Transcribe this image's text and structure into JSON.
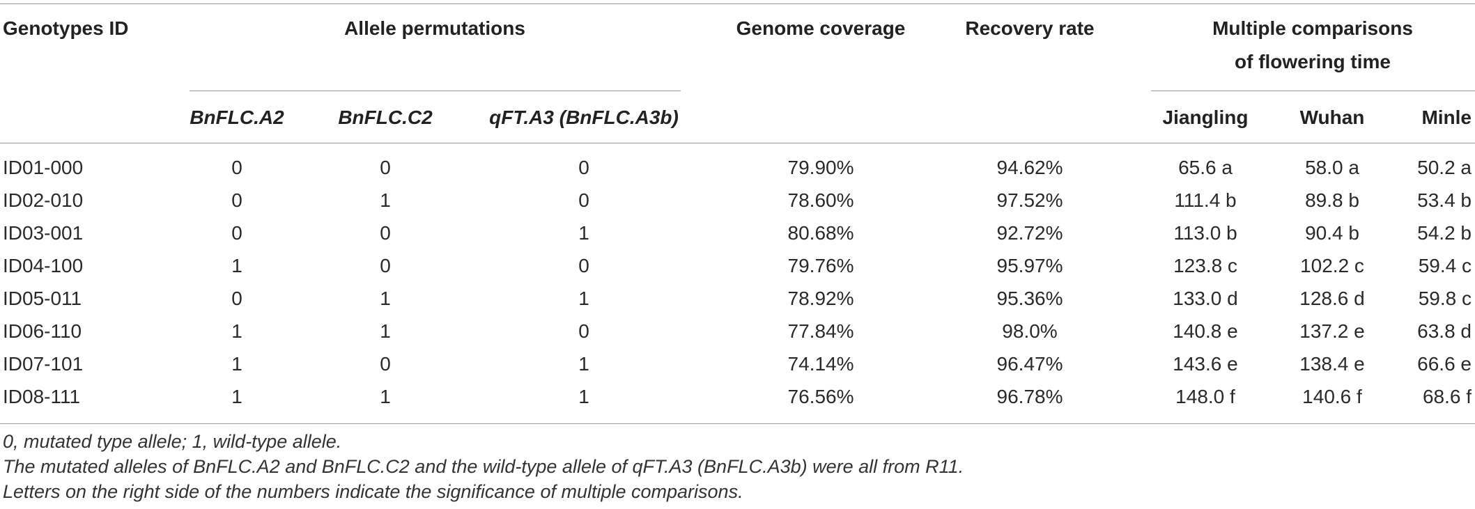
{
  "header": {
    "genotypes_id": "Genotypes ID",
    "allele_permutations": "Allele permutations",
    "genome_coverage": "Genome coverage",
    "recovery_rate": "Recovery rate",
    "multiple_comparisons_line1": "Multiple comparisons",
    "multiple_comparisons_line2": "of flowering time",
    "sub": {
      "bnflc_a2": "BnFLC.A2",
      "bnflc_c2": "BnFLC.C2",
      "qft_a3": "qFT.A3 (BnFLC.A3b)",
      "jiangling": "Jiangling",
      "wuhan": "Wuhan",
      "minle": "Minle"
    }
  },
  "rows": [
    {
      "id": "ID01-000",
      "a2": "0",
      "c2": "0",
      "a3": "0",
      "coverage": "79.90%",
      "recovery": "94.62%",
      "jiangling": "65.6 a",
      "wuhan": "58.0 a",
      "minle": "50.2 a"
    },
    {
      "id": "ID02-010",
      "a2": "0",
      "c2": "1",
      "a3": "0",
      "coverage": "78.60%",
      "recovery": "97.52%",
      "jiangling": "111.4 b",
      "wuhan": "89.8 b",
      "minle": "53.4 b"
    },
    {
      "id": "ID03-001",
      "a2": "0",
      "c2": "0",
      "a3": "1",
      "coverage": "80.68%",
      "recovery": "92.72%",
      "jiangling": "113.0 b",
      "wuhan": "90.4 b",
      "minle": "54.2 b"
    },
    {
      "id": "ID04-100",
      "a2": "1",
      "c2": "0",
      "a3": "0",
      "coverage": "79.76%",
      "recovery": "95.97%",
      "jiangling": "123.8 c",
      "wuhan": "102.2 c",
      "minle": "59.4 c"
    },
    {
      "id": "ID05-011",
      "a2": "0",
      "c2": "1",
      "a3": "1",
      "coverage": "78.92%",
      "recovery": "95.36%",
      "jiangling": "133.0 d",
      "wuhan": "128.6 d",
      "minle": "59.8 c"
    },
    {
      "id": "ID06-110",
      "a2": "1",
      "c2": "1",
      "a3": "0",
      "coverage": "77.84%",
      "recovery": "98.0%",
      "jiangling": "140.8 e",
      "wuhan": "137.2 e",
      "minle": "63.8 d"
    },
    {
      "id": "ID07-101",
      "a2": "1",
      "c2": "0",
      "a3": "1",
      "coverage": "74.14%",
      "recovery": "96.47%",
      "jiangling": "143.6 e",
      "wuhan": "138.4 e",
      "minle": "66.6 e"
    },
    {
      "id": "ID08-111",
      "a2": "1",
      "c2": "1",
      "a3": "1",
      "coverage": "76.56%",
      "recovery": "96.78%",
      "jiangling": "148.0 f",
      "wuhan": "140.6 f",
      "minle": "68.6 f"
    }
  ],
  "footnotes": [
    "0, mutated type allele; 1, wild-type allele.",
    "The mutated alleles of BnFLC.A2 and BnFLC.C2 and the wild-type allele of qFT.A3 (BnFLC.A3b) were all from R11.",
    "Letters on the right side of the numbers indicate the significance of multiple comparisons."
  ]
}
